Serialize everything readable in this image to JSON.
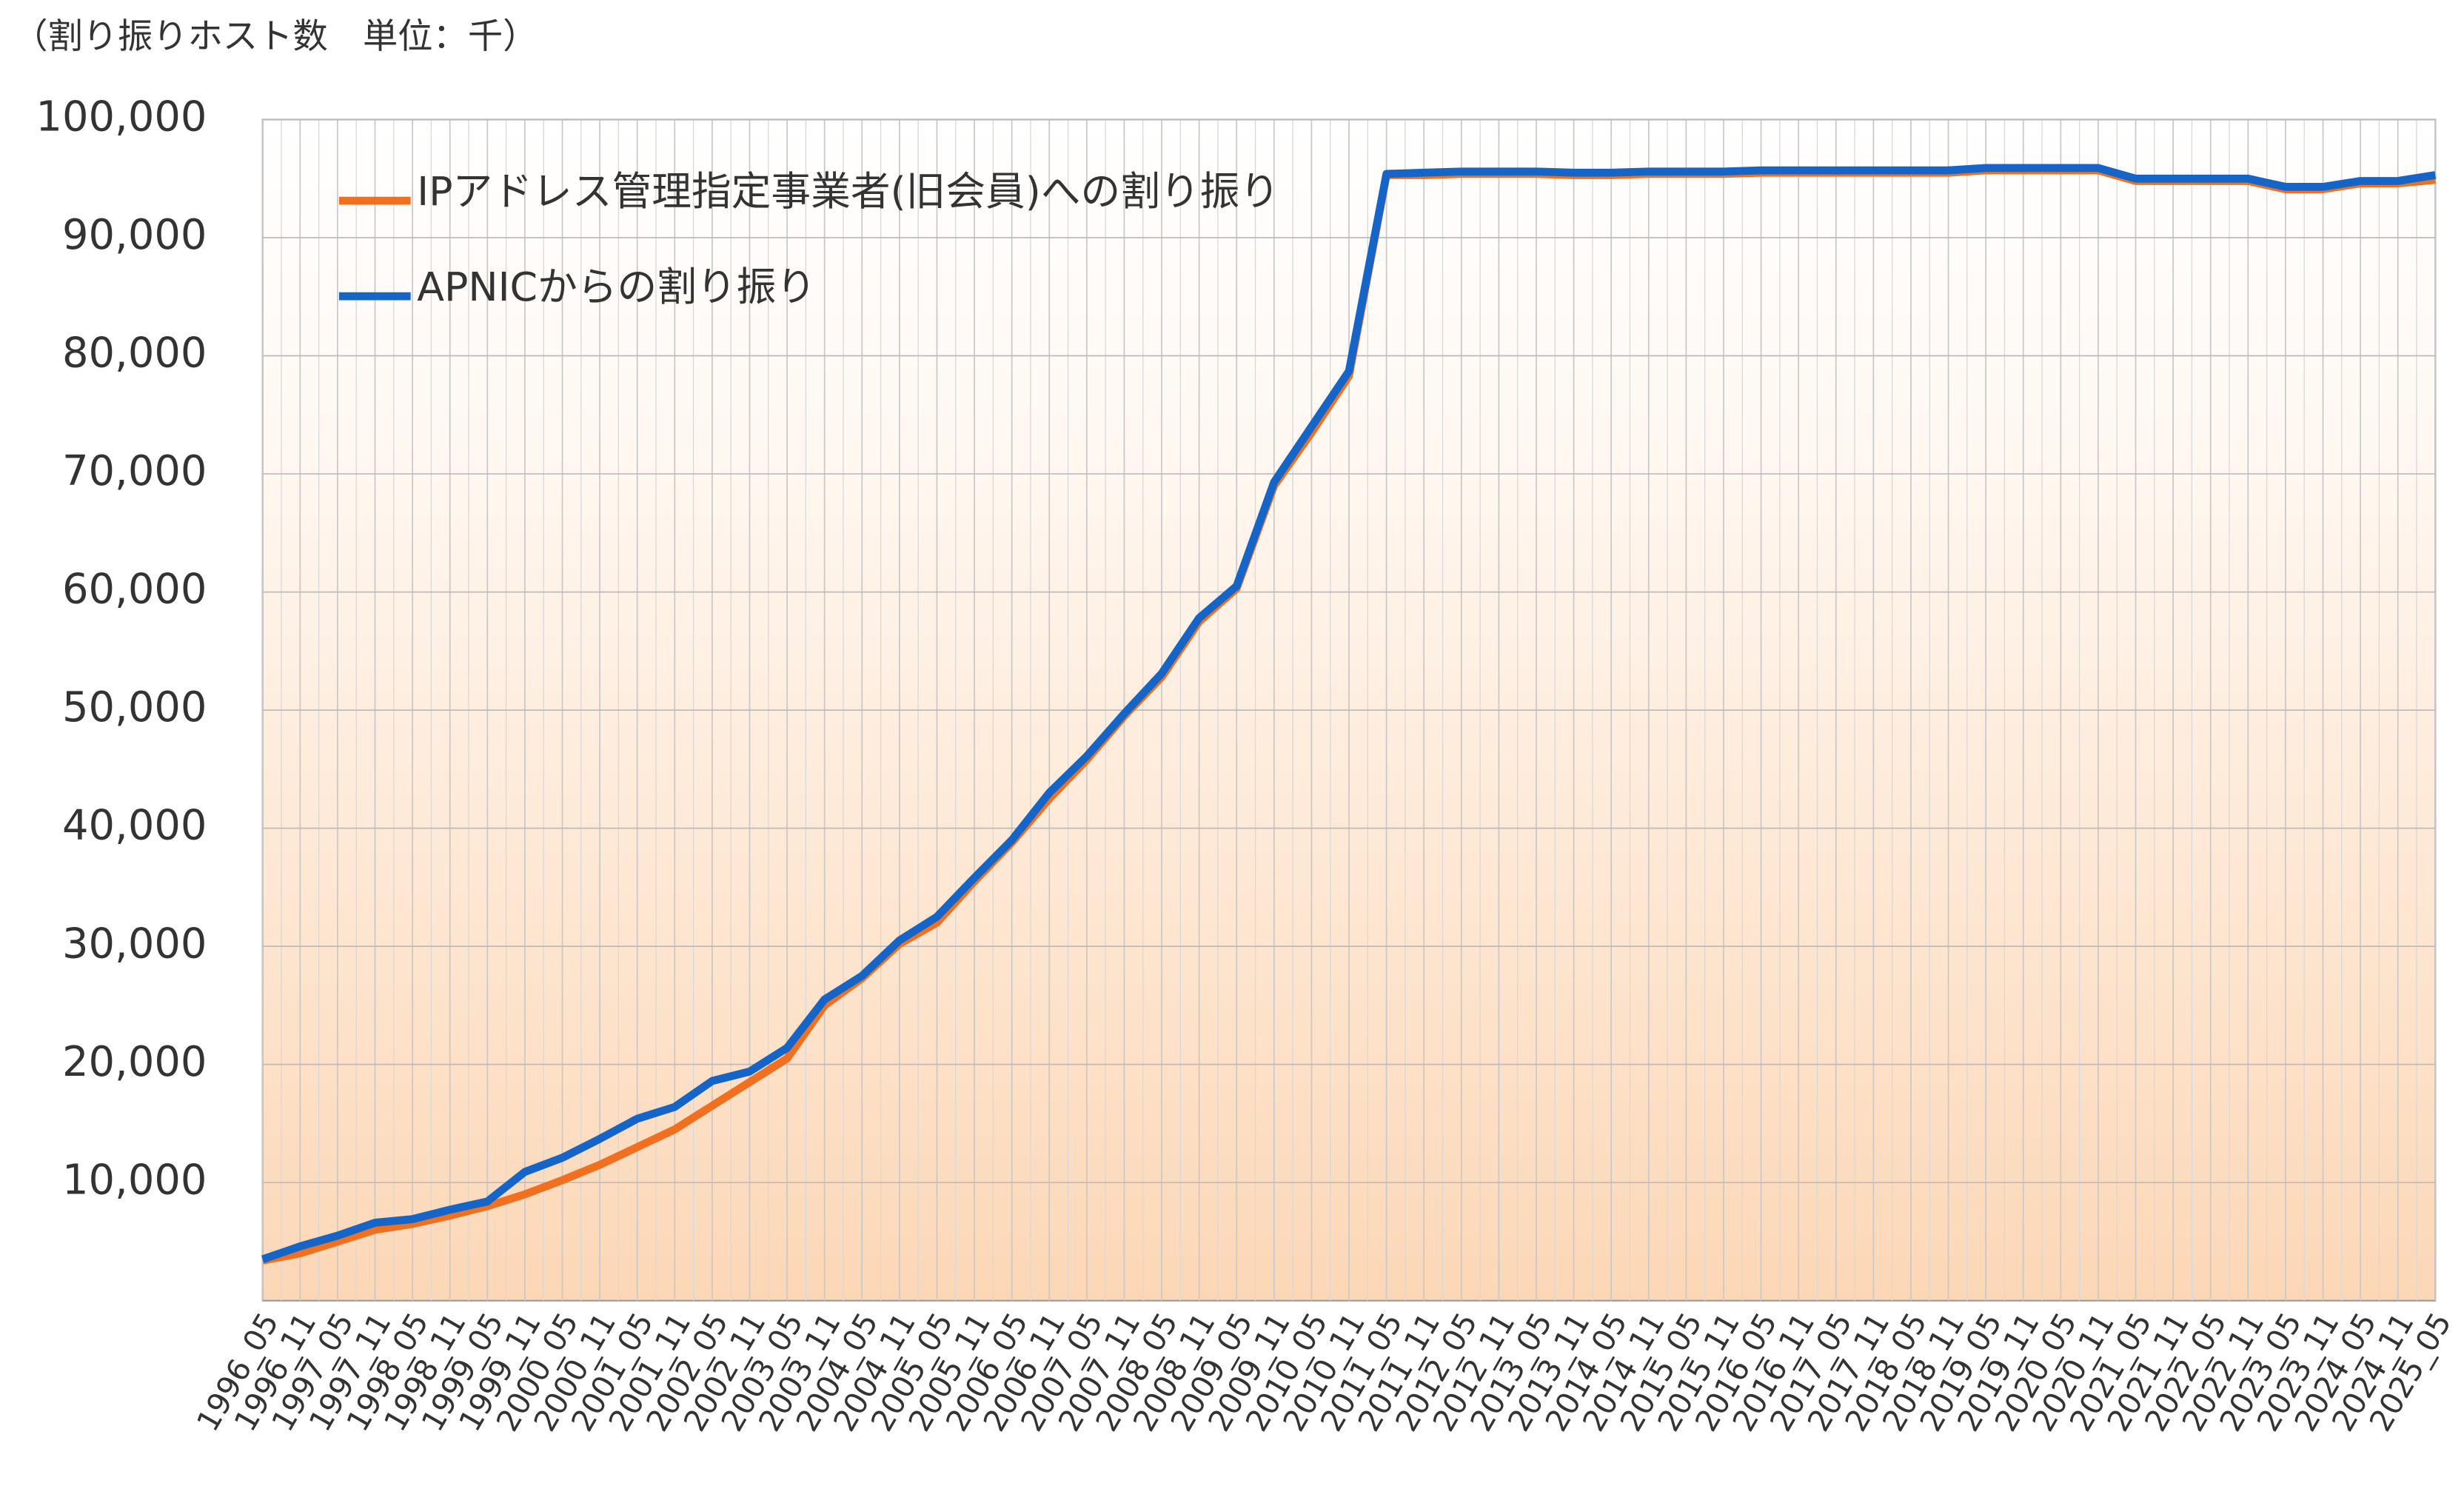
{
  "chart_data": {
    "type": "line",
    "subtitle": "（割り振りホスト数　単位：千）",
    "categories": [
      "1996_05",
      "1996_11",
      "1997_05",
      "1997_11",
      "1998_05",
      "1998_11",
      "1999_05",
      "1999_11",
      "2000_05",
      "2000_11",
      "2001_05",
      "2001_11",
      "2002_05",
      "2002_11",
      "2003_05",
      "2003_11",
      "2004_05",
      "2004_11",
      "2005_05",
      "2005_11",
      "2006_05",
      "2006_11",
      "2007_05",
      "2007_11",
      "2008_05",
      "2008_11",
      "2009_05",
      "2009_11",
      "2010_05",
      "2010_11",
      "2011_05",
      "2011_11",
      "2012_05",
      "2012_11",
      "2013_05",
      "2013_11",
      "2014_05",
      "2014_11",
      "2015_05",
      "2015_11",
      "2016_05",
      "2016_11",
      "2017_05",
      "2017_11",
      "2018_05",
      "2018_11",
      "2019_05",
      "2019_11",
      "2020_05",
      "2020_11",
      "2021_05",
      "2021_11",
      "2022_05",
      "2022_11",
      "2023_05",
      "2023_11",
      "2024_05",
      "2024_11",
      "2025_05"
    ],
    "series": [
      {
        "name": "IPアドレス管理指定事業者(旧会員)への割り振り",
        "color": "#f07020",
        "values": [
          3400,
          4000,
          5000,
          6000,
          6500,
          7200,
          8000,
          9000,
          10200,
          11500,
          13000,
          14500,
          16500,
          18500,
          20500,
          25000,
          27300,
          30200,
          32000,
          35500,
          38800,
          42500,
          45800,
          49500,
          52800,
          57500,
          60300,
          69000,
          73500,
          78300,
          95300,
          95300,
          95400,
          95400,
          95400,
          95300,
          95300,
          95400,
          95400,
          95400,
          95500,
          95500,
          95500,
          95500,
          95500,
          95500,
          95700,
          95700,
          95700,
          95700,
          94800,
          94800,
          94800,
          94800,
          94100,
          94100,
          94600,
          94600,
          94900
        ]
      },
      {
        "name": "APNICからの割り振り",
        "color": "#1565c8",
        "values": [
          3500,
          4600,
          5500,
          6600,
          6900,
          7700,
          8400,
          10900,
          12100,
          13700,
          15400,
          16400,
          18600,
          19400,
          21400,
          25500,
          27500,
          30500,
          32500,
          35800,
          39000,
          43000,
          46100,
          49700,
          53100,
          57800,
          60500,
          69300,
          74000,
          78700,
          95400,
          95500,
          95600,
          95600,
          95600,
          95500,
          95500,
          95600,
          95600,
          95600,
          95700,
          95700,
          95700,
          95700,
          95700,
          95700,
          95900,
          95900,
          95900,
          95900,
          95000,
          95000,
          95000,
          95000,
          94300,
          94300,
          94800,
          94800,
          95300
        ]
      }
    ],
    "ylim": [
      0,
      100000
    ],
    "yticks": [
      {
        "value": 10000,
        "label": "10,000"
      },
      {
        "value": 20000,
        "label": "20,000"
      },
      {
        "value": 30000,
        "label": "30,000"
      },
      {
        "value": 40000,
        "label": "40,000"
      },
      {
        "value": 50000,
        "label": "50,000"
      },
      {
        "value": 60000,
        "label": "60,000"
      },
      {
        "value": 70000,
        "label": "70,000"
      },
      {
        "value": 80000,
        "label": "80,000"
      },
      {
        "value": 90000,
        "label": "90,000"
      },
      {
        "value": 100000,
        "label": "100,000"
      }
    ],
    "grid": true
  }
}
